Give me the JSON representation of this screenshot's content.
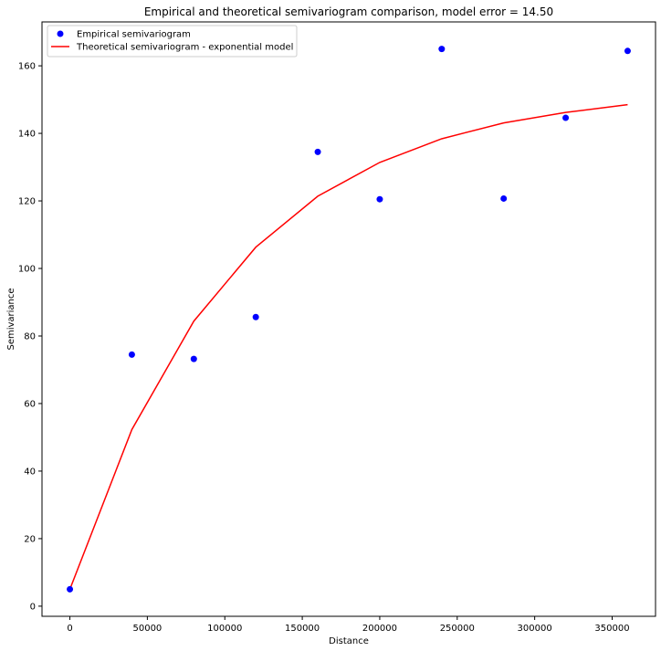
{
  "chart_data": {
    "type": "scatter",
    "title": "Empirical and theoretical semivariogram comparison, model error = 14.50",
    "xlabel": "Distance",
    "ylabel": "Semivariance",
    "xlim": [
      -18000,
      378000
    ],
    "ylim": [
      -3,
      173
    ],
    "xticks": [
      0,
      50000,
      100000,
      150000,
      200000,
      250000,
      300000,
      350000
    ],
    "yticks": [
      0,
      20,
      40,
      60,
      80,
      100,
      120,
      140,
      160
    ],
    "grid": false,
    "legend_position": "top-left",
    "series": [
      {
        "name": "Empirical semivariogram",
        "kind": "scatter",
        "color": "#0000ff",
        "x": [
          0,
          40000,
          80000,
          120000,
          160000,
          200000,
          240000,
          280000,
          320000,
          360000
        ],
        "y": [
          5.0,
          74.5,
          73.2,
          85.6,
          134.5,
          120.5,
          165.0,
          120.7,
          144.6,
          164.4
        ]
      },
      {
        "name": "Theoretical semivariogram - exponential model",
        "kind": "line",
        "color": "#ff0000",
        "x": [
          0,
          40000,
          80000,
          120000,
          160000,
          200000,
          240000,
          280000,
          320000,
          360000
        ],
        "y": [
          5.0,
          52.3,
          84.4,
          106.3,
          121.4,
          131.4,
          138.4,
          143.1,
          146.2,
          148.5
        ]
      }
    ]
  }
}
